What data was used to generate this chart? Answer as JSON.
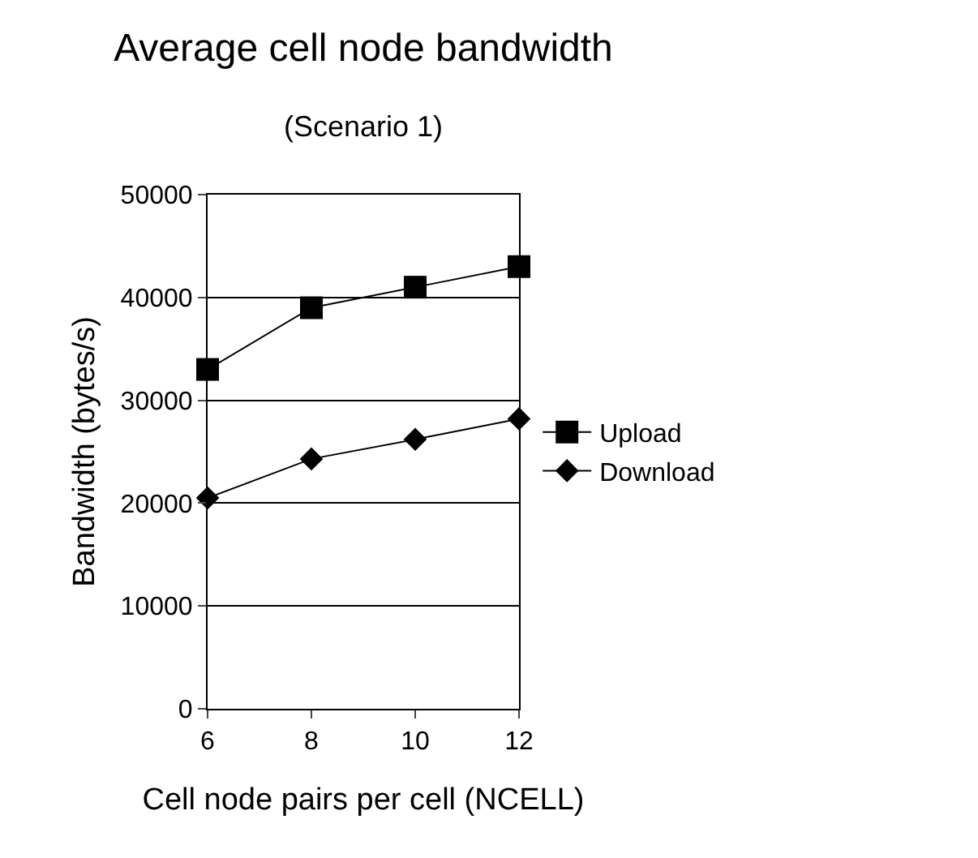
{
  "chart_data": {
    "type": "line",
    "title": "Average cell node bandwidth",
    "subtitle": "(Scenario 1)",
    "xlabel": "Cell node pairs per cell (NCELL)",
    "ylabel": "Bandwidth (bytes/s)",
    "x": [
      6,
      8,
      10,
      12
    ],
    "xlim": [
      6,
      12
    ],
    "xticks": [
      6,
      8,
      10,
      12
    ],
    "ylim": [
      0,
      50000
    ],
    "yticks": [
      0,
      10000,
      20000,
      30000,
      40000,
      50000
    ],
    "grid": "y",
    "legend": "right",
    "series": [
      {
        "name": "Upload",
        "color": "#000000",
        "marker": "square",
        "values": [
          33000,
          39000,
          41000,
          43000
        ]
      },
      {
        "name": "Download",
        "color": "#000000",
        "marker": "diamond",
        "values": [
          20500,
          24300,
          26200,
          28200
        ]
      }
    ]
  }
}
